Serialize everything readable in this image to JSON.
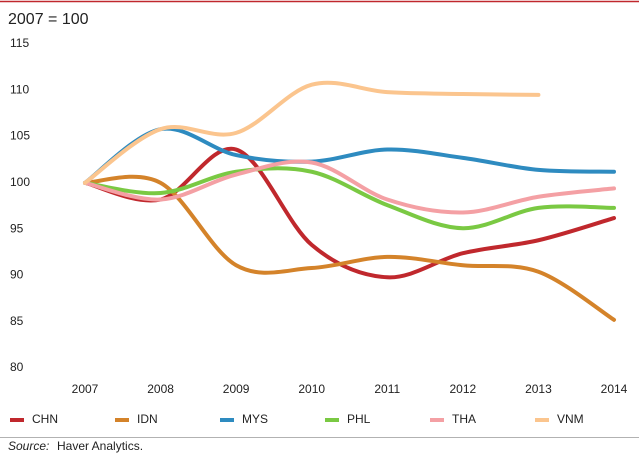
{
  "chart_data": {
    "type": "line",
    "subtitle": "2007 = 100",
    "categories": [
      "2007",
      "2008",
      "2009",
      "2010",
      "2011",
      "2012",
      "2013",
      "2014"
    ],
    "series": [
      {
        "name": "CHN",
        "color": "#c0282d",
        "values": [
          100,
          98.2,
          103.6,
          93.3,
          89.8,
          92.4,
          93.8,
          96.2
        ]
      },
      {
        "name": "IDN",
        "color": "#d4832a",
        "values": [
          100,
          100,
          91.1,
          90.8,
          92.0,
          91.1,
          90.4,
          85.2
        ]
      },
      {
        "name": "MYS",
        "color": "#2e8bc0",
        "values": [
          100,
          105.8,
          103.0,
          102.3,
          103.6,
          102.7,
          101.4,
          101.2
        ]
      },
      {
        "name": "PHL",
        "color": "#7ac943",
        "values": [
          100,
          98.9,
          101.2,
          101.2,
          97.6,
          95.1,
          97.3,
          97.3
        ]
      },
      {
        "name": "THA",
        "color": "#f4a0a4",
        "values": [
          100,
          98.2,
          100.9,
          102.2,
          98.2,
          96.8,
          98.5,
          99.4
        ]
      },
      {
        "name": "VNM",
        "color": "#fbc58e",
        "values": [
          100,
          105.8,
          105.4,
          110.6,
          109.8,
          109.6,
          109.5,
          null
        ]
      }
    ],
    "ylim": [
      80,
      115
    ],
    "yticks": [
      80,
      85,
      90,
      95,
      100,
      105,
      110,
      115
    ],
    "grid": false,
    "source_label": "Source:",
    "source": "Haver Analytics."
  }
}
